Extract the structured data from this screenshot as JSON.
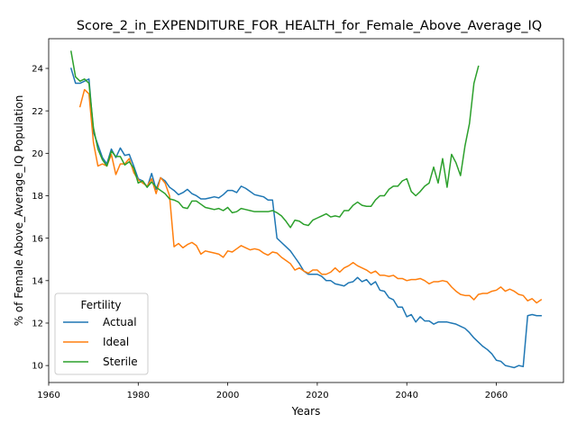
{
  "chart_data": {
    "type": "line",
    "title": "Score_2_in_EXPENDITURE_FOR_HEALTH_for_Female_Above_Average_IQ",
    "xlabel": "Years",
    "ylabel": "% of Female Above_Average_IQ Population",
    "xlim": [
      1960,
      2075
    ],
    "ylim": [
      9.2,
      25.4
    ],
    "xticks": [
      1960,
      1980,
      2000,
      2020,
      2040,
      2060
    ],
    "yticks": [
      10,
      12,
      14,
      16,
      18,
      20,
      22,
      24
    ],
    "grid": false,
    "legend": {
      "title": "Fertility",
      "placement": "lower-left"
    },
    "series": [
      {
        "name": "Actual",
        "color": "#1f77b4",
        "points": [
          [
            1965,
            24.0
          ],
          [
            1966,
            23.3
          ],
          [
            1967,
            23.3
          ],
          [
            1968,
            23.4
          ],
          [
            1969,
            23.5
          ],
          [
            1970,
            21.0
          ],
          [
            1971,
            20.4
          ],
          [
            1972,
            19.8
          ],
          [
            1973,
            19.5
          ],
          [
            1974,
            20.2
          ],
          [
            1975,
            19.8
          ],
          [
            1976,
            20.25
          ],
          [
            1977,
            19.9
          ],
          [
            1978,
            19.95
          ],
          [
            1979,
            19.4
          ],
          [
            1980,
            18.8
          ],
          [
            1981,
            18.7
          ],
          [
            1982,
            18.4
          ],
          [
            1983,
            19.05
          ],
          [
            1984,
            18.3
          ],
          [
            1985,
            18.85
          ],
          [
            1986,
            18.7
          ],
          [
            1987,
            18.4
          ],
          [
            1988,
            18.25
          ],
          [
            1989,
            18.05
          ],
          [
            1990,
            18.15
          ],
          [
            1991,
            18.3
          ],
          [
            1992,
            18.1
          ],
          [
            1993,
            18.0
          ],
          [
            1994,
            17.85
          ],
          [
            1995,
            17.85
          ],
          [
            1996,
            17.9
          ],
          [
            1997,
            17.95
          ],
          [
            1998,
            17.9
          ],
          [
            1999,
            18.05
          ],
          [
            2000,
            18.25
          ],
          [
            2001,
            18.25
          ],
          [
            2002,
            18.15
          ],
          [
            2003,
            18.45
          ],
          [
            2004,
            18.35
          ],
          [
            2005,
            18.2
          ],
          [
            2006,
            18.05
          ],
          [
            2007,
            18.0
          ],
          [
            2008,
            17.95
          ],
          [
            2009,
            17.8
          ],
          [
            2010,
            17.8
          ],
          [
            2011,
            16.0
          ],
          [
            2012,
            15.8
          ],
          [
            2013,
            15.6
          ],
          [
            2014,
            15.4
          ],
          [
            2015,
            15.1
          ],
          [
            2016,
            14.8
          ],
          [
            2017,
            14.45
          ],
          [
            2018,
            14.3
          ],
          [
            2019,
            14.3
          ],
          [
            2020,
            14.3
          ],
          [
            2021,
            14.2
          ],
          [
            2022,
            14.0
          ],
          [
            2023,
            14.0
          ],
          [
            2024,
            13.85
          ],
          [
            2025,
            13.8
          ],
          [
            2026,
            13.75
          ],
          [
            2027,
            13.9
          ],
          [
            2028,
            13.95
          ],
          [
            2029,
            14.15
          ],
          [
            2030,
            13.95
          ],
          [
            2031,
            14.05
          ],
          [
            2032,
            13.8
          ],
          [
            2033,
            13.95
          ],
          [
            2034,
            13.55
          ],
          [
            2035,
            13.5
          ],
          [
            2036,
            13.2
          ],
          [
            2037,
            13.1
          ],
          [
            2038,
            12.75
          ],
          [
            2039,
            12.75
          ],
          [
            2040,
            12.3
          ],
          [
            2041,
            12.4
          ],
          [
            2042,
            12.05
          ],
          [
            2043,
            12.3
          ],
          [
            2044,
            12.1
          ],
          [
            2045,
            12.1
          ],
          [
            2046,
            11.95
          ],
          [
            2047,
            12.05
          ],
          [
            2048,
            12.05
          ],
          [
            2049,
            12.05
          ],
          [
            2050,
            12.0
          ],
          [
            2051,
            11.95
          ],
          [
            2052,
            11.85
          ],
          [
            2053,
            11.75
          ],
          [
            2054,
            11.55
          ],
          [
            2055,
            11.3
          ],
          [
            2056,
            11.1
          ],
          [
            2057,
            10.9
          ],
          [
            2058,
            10.75
          ],
          [
            2059,
            10.55
          ],
          [
            2060,
            10.25
          ],
          [
            2061,
            10.2
          ],
          [
            2062,
            10.0
          ],
          [
            2063,
            9.95
          ],
          [
            2064,
            9.9
          ],
          [
            2065,
            10.0
          ],
          [
            2066,
            9.95
          ],
          [
            2067,
            12.35
          ],
          [
            2068,
            12.4
          ],
          [
            2069,
            12.35
          ],
          [
            2070,
            12.35
          ]
        ]
      },
      {
        "name": "Ideal",
        "color": "#ff7f0e",
        "points": [
          [
            1967,
            22.2
          ],
          [
            1968,
            23.0
          ],
          [
            1969,
            22.8
          ],
          [
            1970,
            20.5
          ],
          [
            1971,
            19.4
          ],
          [
            1972,
            19.5
          ],
          [
            1973,
            19.4
          ],
          [
            1974,
            19.95
          ],
          [
            1975,
            19.0
          ],
          [
            1976,
            19.5
          ],
          [
            1977,
            19.5
          ],
          [
            1978,
            19.75
          ],
          [
            1979,
            19.1
          ],
          [
            1980,
            18.75
          ],
          [
            1981,
            18.6
          ],
          [
            1982,
            18.45
          ],
          [
            1983,
            18.8
          ],
          [
            1984,
            18.1
          ],
          [
            1985,
            18.85
          ],
          [
            1986,
            18.6
          ],
          [
            1987,
            18.0
          ],
          [
            1988,
            15.6
          ],
          [
            1989,
            15.75
          ],
          [
            1990,
            15.55
          ],
          [
            1991,
            15.7
          ],
          [
            1992,
            15.8
          ],
          [
            1993,
            15.65
          ],
          [
            1994,
            15.25
          ],
          [
            1995,
            15.4
          ],
          [
            1996,
            15.35
          ],
          [
            1997,
            15.3
          ],
          [
            1998,
            15.25
          ],
          [
            1999,
            15.1
          ],
          [
            2000,
            15.4
          ],
          [
            2001,
            15.35
          ],
          [
            2002,
            15.5
          ],
          [
            2003,
            15.65
          ],
          [
            2004,
            15.55
          ],
          [
            2005,
            15.45
          ],
          [
            2006,
            15.5
          ],
          [
            2007,
            15.45
          ],
          [
            2008,
            15.3
          ],
          [
            2009,
            15.2
          ],
          [
            2010,
            15.35
          ],
          [
            2011,
            15.3
          ],
          [
            2012,
            15.1
          ],
          [
            2013,
            14.95
          ],
          [
            2014,
            14.8
          ],
          [
            2015,
            14.5
          ],
          [
            2016,
            14.6
          ],
          [
            2017,
            14.45
          ],
          [
            2018,
            14.35
          ],
          [
            2019,
            14.5
          ],
          [
            2020,
            14.5
          ],
          [
            2021,
            14.3
          ],
          [
            2022,
            14.3
          ],
          [
            2023,
            14.4
          ],
          [
            2024,
            14.6
          ],
          [
            2025,
            14.4
          ],
          [
            2026,
            14.6
          ],
          [
            2027,
            14.7
          ],
          [
            2028,
            14.85
          ],
          [
            2029,
            14.7
          ],
          [
            2030,
            14.6
          ],
          [
            2031,
            14.5
          ],
          [
            2032,
            14.35
          ],
          [
            2033,
            14.45
          ],
          [
            2034,
            14.25
          ],
          [
            2035,
            14.25
          ],
          [
            2036,
            14.2
          ],
          [
            2037,
            14.25
          ],
          [
            2038,
            14.1
          ],
          [
            2039,
            14.1
          ],
          [
            2040,
            14.0
          ],
          [
            2041,
            14.05
          ],
          [
            2042,
            14.05
          ],
          [
            2043,
            14.1
          ],
          [
            2044,
            14.0
          ],
          [
            2045,
            13.85
          ],
          [
            2046,
            13.95
          ],
          [
            2047,
            13.95
          ],
          [
            2048,
            14.0
          ],
          [
            2049,
            13.95
          ],
          [
            2050,
            13.7
          ],
          [
            2051,
            13.5
          ],
          [
            2052,
            13.35
          ],
          [
            2053,
            13.3
          ],
          [
            2054,
            13.3
          ],
          [
            2055,
            13.1
          ],
          [
            2056,
            13.35
          ],
          [
            2057,
            13.4
          ],
          [
            2058,
            13.4
          ],
          [
            2059,
            13.5
          ],
          [
            2060,
            13.55
          ],
          [
            2061,
            13.7
          ],
          [
            2062,
            13.5
          ],
          [
            2063,
            13.6
          ],
          [
            2064,
            13.5
          ],
          [
            2065,
            13.35
          ],
          [
            2066,
            13.3
          ],
          [
            2067,
            13.05
          ],
          [
            2068,
            13.15
          ],
          [
            2069,
            12.95
          ],
          [
            2070,
            13.1
          ]
        ]
      },
      {
        "name": "Sterile",
        "color": "#2ca02c",
        "points": [
          [
            1965,
            24.8
          ],
          [
            1966,
            23.6
          ],
          [
            1967,
            23.4
          ],
          [
            1968,
            23.5
          ],
          [
            1969,
            23.3
          ],
          [
            1970,
            21.2
          ],
          [
            1971,
            20.2
          ],
          [
            1972,
            19.7
          ],
          [
            1973,
            19.4
          ],
          [
            1974,
            20.1
          ],
          [
            1975,
            19.85
          ],
          [
            1976,
            19.85
          ],
          [
            1977,
            19.45
          ],
          [
            1978,
            19.6
          ],
          [
            1979,
            19.3
          ],
          [
            1980,
            18.6
          ],
          [
            1981,
            18.7
          ],
          [
            1982,
            18.4
          ],
          [
            1983,
            18.65
          ],
          [
            1984,
            18.4
          ],
          [
            1985,
            18.25
          ],
          [
            1986,
            18.1
          ],
          [
            1987,
            17.85
          ],
          [
            1988,
            17.8
          ],
          [
            1989,
            17.7
          ],
          [
            1990,
            17.45
          ],
          [
            1991,
            17.4
          ],
          [
            1992,
            17.75
          ],
          [
            1993,
            17.75
          ],
          [
            1994,
            17.6
          ],
          [
            1995,
            17.45
          ],
          [
            1996,
            17.4
          ],
          [
            1997,
            17.35
          ],
          [
            1998,
            17.4
          ],
          [
            1999,
            17.3
          ],
          [
            2000,
            17.45
          ],
          [
            2001,
            17.2
          ],
          [
            2002,
            17.25
          ],
          [
            2003,
            17.4
          ],
          [
            2004,
            17.35
          ],
          [
            2005,
            17.3
          ],
          [
            2006,
            17.25
          ],
          [
            2007,
            17.25
          ],
          [
            2008,
            17.25
          ],
          [
            2009,
            17.25
          ],
          [
            2010,
            17.3
          ],
          [
            2011,
            17.2
          ],
          [
            2012,
            17.05
          ],
          [
            2013,
            16.8
          ],
          [
            2014,
            16.5
          ],
          [
            2015,
            16.85
          ],
          [
            2016,
            16.8
          ],
          [
            2017,
            16.65
          ],
          [
            2018,
            16.6
          ],
          [
            2019,
            16.85
          ],
          [
            2020,
            16.95
          ],
          [
            2021,
            17.05
          ],
          [
            2022,
            17.15
          ],
          [
            2023,
            17.0
          ],
          [
            2024,
            17.05
          ],
          [
            2025,
            17.0
          ],
          [
            2026,
            17.3
          ],
          [
            2027,
            17.3
          ],
          [
            2028,
            17.55
          ],
          [
            2029,
            17.7
          ],
          [
            2030,
            17.55
          ],
          [
            2031,
            17.5
          ],
          [
            2032,
            17.5
          ],
          [
            2033,
            17.8
          ],
          [
            2034,
            18.0
          ],
          [
            2035,
            18.0
          ],
          [
            2036,
            18.3
          ],
          [
            2037,
            18.45
          ],
          [
            2038,
            18.45
          ],
          [
            2039,
            18.7
          ],
          [
            2040,
            18.8
          ],
          [
            2041,
            18.2
          ],
          [
            2042,
            18.0
          ],
          [
            2043,
            18.2
          ],
          [
            2044,
            18.45
          ],
          [
            2045,
            18.6
          ],
          [
            2046,
            19.35
          ],
          [
            2047,
            18.6
          ],
          [
            2048,
            19.75
          ],
          [
            2049,
            18.4
          ],
          [
            2050,
            19.95
          ],
          [
            2051,
            19.55
          ],
          [
            2052,
            18.95
          ],
          [
            2053,
            20.35
          ],
          [
            2054,
            21.4
          ],
          [
            2055,
            23.3
          ],
          [
            2056,
            24.1
          ]
        ]
      }
    ]
  }
}
